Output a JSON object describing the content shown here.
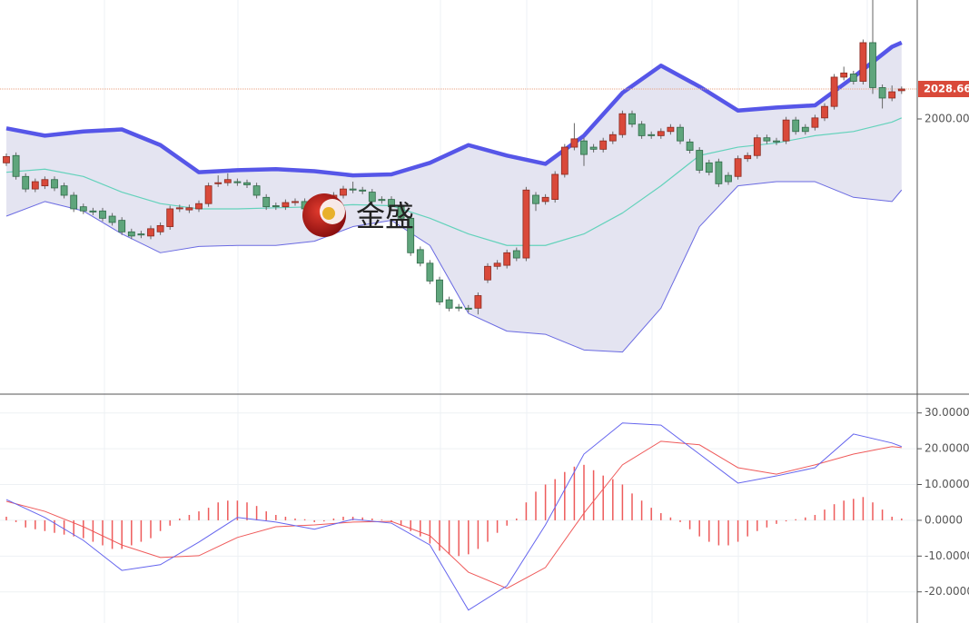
{
  "chart_data": [
    {
      "type": "candlestick",
      "ylim": [
        1737.6,
        2113.8
      ],
      "yticks": [
        {
          "value": 2000,
          "label": "2000.00"
        }
      ],
      "up_color": "#d9493a",
      "down_color": "#5fa57c",
      "ohlc": [
        [
          1958,
          1967,
          1955,
          1964
        ],
        [
          1965,
          1968,
          1942,
          1945
        ],
        [
          1945,
          1948,
          1930,
          1933
        ],
        [
          1933,
          1943,
          1930,
          1940
        ],
        [
          1936,
          1945,
          1933,
          1942
        ],
        [
          1942,
          1945,
          1931,
          1934
        ],
        [
          1936,
          1939,
          1924,
          1927
        ],
        [
          1927,
          1930,
          1911,
          1914
        ],
        [
          1916,
          1919,
          1909,
          1912
        ],
        [
          1912,
          1915,
          1908,
          1911
        ],
        [
          1912,
          1915,
          1902,
          1905
        ],
        [
          1907,
          1910,
          1898,
          1901
        ],
        [
          1903,
          1906,
          1889,
          1892
        ],
        [
          1892,
          1895,
          1885,
          1888
        ],
        [
          1890,
          1893,
          1886,
          1889
        ],
        [
          1888,
          1898,
          1885,
          1895
        ],
        [
          1892,
          1901,
          1889,
          1898
        ],
        [
          1897,
          1917,
          1894,
          1914
        ],
        [
          1914,
          1918,
          1911,
          1915
        ],
        [
          1913,
          1918,
          1910,
          1915
        ],
        [
          1914,
          1922,
          1911,
          1919
        ],
        [
          1919,
          1939,
          1916,
          1936
        ],
        [
          1938,
          1946,
          1935,
          1939
        ],
        [
          1939,
          1948,
          1936,
          1942
        ],
        [
          1940,
          1943,
          1936,
          1939
        ],
        [
          1939,
          1942,
          1934,
          1937
        ],
        [
          1936,
          1939,
          1924,
          1927
        ],
        [
          1925,
          1928,
          1913,
          1916
        ],
        [
          1917,
          1920,
          1913,
          1916
        ],
        [
          1916,
          1923,
          1913,
          1920
        ],
        [
          1920,
          1924,
          1917,
          1921
        ],
        [
          1921,
          1924,
          1911,
          1914
        ],
        [
          1919,
          1922,
          1915,
          1918
        ],
        [
          1919,
          1926,
          1916,
          1923
        ],
        [
          1923,
          1930,
          1920,
          1927
        ],
        [
          1927,
          1936,
          1924,
          1933
        ],
        [
          1933,
          1940,
          1929,
          1932
        ],
        [
          1932,
          1935,
          1928,
          1931
        ],
        [
          1930,
          1933,
          1918,
          1921
        ],
        [
          1923,
          1926,
          1919,
          1922
        ],
        [
          1923,
          1926,
          1913,
          1916
        ],
        [
          1916,
          1919,
          1902,
          1905
        ],
        [
          1905,
          1908,
          1869,
          1872
        ],
        [
          1875,
          1878,
          1859,
          1862
        ],
        [
          1862,
          1865,
          1842,
          1845
        ],
        [
          1846,
          1849,
          1822,
          1825
        ],
        [
          1827,
          1830,
          1816,
          1819
        ],
        [
          1820,
          1823,
          1816,
          1819
        ],
        [
          1819,
          1822,
          1815,
          1818
        ],
        [
          1819,
          1834,
          1813,
          1831
        ],
        [
          1846,
          1862,
          1843,
          1859
        ],
        [
          1859,
          1865,
          1856,
          1862
        ],
        [
          1860,
          1875,
          1857,
          1872
        ],
        [
          1874,
          1877,
          1864,
          1867
        ],
        [
          1867,
          1935,
          1864,
          1932
        ],
        [
          1927,
          1930,
          1912,
          1919
        ],
        [
          1921,
          1928,
          1918,
          1925
        ],
        [
          1923,
          1950,
          1920,
          1947
        ],
        [
          1947,
          1976,
          1944,
          1973
        ],
        [
          1973,
          1996,
          1970,
          1981
        ],
        [
          1979,
          1982,
          1955,
          1966
        ],
        [
          1973,
          1976,
          1968,
          1971
        ],
        [
          1971,
          1982,
          1968,
          1979
        ],
        [
          1979,
          1988,
          1976,
          1985
        ],
        [
          1985,
          2008,
          1982,
          2005
        ],
        [
          2005,
          2008,
          1992,
          1995
        ],
        [
          1995,
          1998,
          1981,
          1984
        ],
        [
          1985,
          1988,
          1981,
          1984
        ],
        [
          1984,
          1991,
          1981,
          1988
        ],
        [
          1988,
          1995,
          1985,
          1992
        ],
        [
          1992,
          1995,
          1976,
          1979
        ],
        [
          1978,
          1981,
          1967,
          1970
        ],
        [
          1970,
          1973,
          1948,
          1951
        ],
        [
          1958,
          1961,
          1946,
          1949
        ],
        [
          1959,
          1962,
          1935,
          1938
        ],
        [
          1946,
          1949,
          1937,
          1940
        ],
        [
          1945,
          1965,
          1942,
          1962
        ],
        [
          1962,
          1968,
          1959,
          1965
        ],
        [
          1965,
          1985,
          1962,
          1982
        ],
        [
          1982,
          1985,
          1976,
          1979
        ],
        [
          1979,
          1982,
          1975,
          1978
        ],
        [
          1979,
          2002,
          1976,
          1999
        ],
        [
          1999,
          2002,
          1985,
          1988
        ],
        [
          1992,
          1995,
          1985,
          1988
        ],
        [
          1992,
          2004,
          1989,
          2001
        ],
        [
          2001,
          2015,
          1998,
          2012
        ],
        [
          2012,
          2043,
          2009,
          2040
        ],
        [
          2040,
          2050,
          2037,
          2044
        ],
        [
          2043,
          2046,
          2033,
          2036
        ],
        [
          2036,
          2076,
          2033,
          2073
        ],
        [
          2073,
          2113.8,
          2024,
          2030
        ],
        [
          2030,
          2033,
          2010,
          2020
        ],
        [
          2020,
          2032,
          2017,
          2026
        ],
        [
          2027,
          2031,
          2024,
          2028.66
        ]
      ],
      "bollinger": {
        "x": [
          0,
          4,
          8,
          12,
          16,
          20,
          24,
          28,
          32,
          36,
          40,
          44,
          48,
          52,
          56,
          60,
          64,
          68,
          72,
          76,
          80,
          84,
          88,
          92,
          93
        ],
        "upper": [
          1991,
          1984,
          1988,
          1990,
          1975,
          1949,
          1951,
          1952,
          1950,
          1946,
          1947,
          1958,
          1975,
          1965,
          1957,
          1984,
          2025,
          2051,
          2031,
          2008,
          2011,
          2013,
          2040,
          2069,
          2073
        ],
        "middle": [
          1949,
          1952,
          1945,
          1930,
          1919,
          1914,
          1914,
          1915,
          1916,
          1918,
          1917,
          1905,
          1890,
          1879,
          1879,
          1890,
          1910,
          1936,
          1965,
          1973,
          1977,
          1984,
          1988,
          1997,
          2001
        ],
        "lower": [
          1907,
          1921,
          1912,
          1890,
          1872,
          1878,
          1879,
          1879,
          1883,
          1897,
          1903,
          1879,
          1814,
          1797,
          1794,
          1779,
          1777,
          1819,
          1897,
          1936,
          1940,
          1940,
          1925,
          1921,
          1932
        ],
        "upper_color": "#5656e8",
        "middle_color": "#63d2bb",
        "lower_color": "#6a6ae2",
        "fill": "#e4e4f1"
      },
      "last_price": 2028.66,
      "last_price_color": "#d9493a",
      "watermark": "金盛"
    },
    {
      "type": "macd",
      "ylim": [
        -28.7,
        35
      ],
      "yticks": [
        {
          "value": 30,
          "label": "30.0000"
        },
        {
          "value": 20,
          "label": "20.0000"
        },
        {
          "value": 10,
          "label": "10.0000"
        },
        {
          "value": 0,
          "label": "0.0000"
        },
        {
          "value": -10,
          "label": "-10.0000"
        },
        {
          "value": -20,
          "label": "-20.0000"
        }
      ],
      "histogram": {
        "color": "#ee5b5b",
        "values": [
          1,
          -0.5,
          -2,
          -2.5,
          -3,
          -3.5,
          -4,
          -4.5,
          -5,
          -6,
          -7,
          -8,
          -8,
          -7,
          -6,
          -5,
          -3,
          -1.5,
          0.5,
          1.5,
          2.5,
          3.5,
          5,
          5.5,
          5.5,
          5,
          4,
          2.5,
          1.5,
          1,
          0.5,
          0.3,
          -0.5,
          -0.3,
          0.5,
          1,
          1,
          0.8,
          0.5,
          0.2,
          -0.5,
          -1.5,
          -3,
          -4.5,
          -6.5,
          -8.5,
          -9.5,
          -10,
          -9.5,
          -8,
          -6,
          -3.5,
          -1.5,
          0.5,
          5,
          8,
          10,
          11.5,
          13.5,
          15,
          15.5,
          14,
          12.5,
          11.5,
          10,
          7.5,
          5.5,
          3.5,
          2,
          0.8,
          -0.5,
          -2.5,
          -4.5,
          -6,
          -7,
          -7,
          -6,
          -4.5,
          -3,
          -2,
          -1,
          -0.3,
          0.3,
          0.8,
          1.5,
          3,
          4.5,
          5.5,
          6,
          6.5,
          5,
          3,
          1,
          0.5
        ]
      },
      "x": [
        0,
        4,
        8,
        12,
        16,
        20,
        24,
        28,
        32,
        36,
        40,
        44,
        48,
        52,
        56,
        60,
        64,
        68,
        72,
        76,
        80,
        84,
        88,
        92,
        93
      ],
      "macd": {
        "color": "#6565ee",
        "values": [
          5.8,
          0.8,
          -5.6,
          -14,
          -12.4,
          -6.1,
          0.8,
          -0.5,
          -2.5,
          0.3,
          -0.8,
          -6.9,
          -25.1,
          -18.3,
          -1.3,
          18.5,
          27.2,
          26.6,
          18.5,
          10.4,
          12.4,
          14.7,
          24.1,
          21.6,
          20.6
        ]
      },
      "signal": {
        "color": "#ef5a5a",
        "values": [
          5.3,
          2.5,
          -1.8,
          -6.9,
          -10.4,
          -9.9,
          -4.8,
          -1.8,
          -1.3,
          -0.5,
          -0.3,
          -4.3,
          -14.5,
          -19,
          -13.2,
          2,
          15.5,
          22.1,
          21.1,
          14.7,
          12.9,
          15.5,
          18.5,
          20.6,
          20.3
        ]
      }
    }
  ]
}
